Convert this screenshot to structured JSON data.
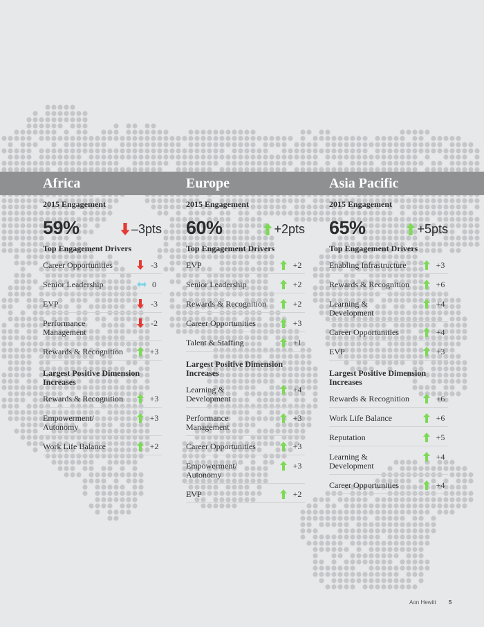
{
  "regions": [
    {
      "title": "Africa",
      "engagement_label": "2015 Engagement",
      "engagement": "59%",
      "change": "–3pts",
      "change_dir": "down",
      "drivers_title": "Top Engagement Drivers",
      "drivers": [
        {
          "label": "Career Opportunities",
          "dir": "down",
          "value": "-3"
        },
        {
          "label": "Senior Leadership",
          "dir": "flat",
          "value": "0"
        },
        {
          "label": "EVP",
          "dir": "down",
          "value": "-3"
        },
        {
          "label": "Performance Management",
          "dir": "down",
          "value": "-2"
        },
        {
          "label": "Rewards & Recognition",
          "dir": "up",
          "value": "+3"
        }
      ],
      "increases_title": "Largest Positive Dimension Increases",
      "increases": [
        {
          "label": "Rewards & Recognition",
          "dir": "up",
          "value": "+3"
        },
        {
          "label": "Empowerment/ Autonomy",
          "dir": "up",
          "value": "+3"
        },
        {
          "label": "Work Life Balance",
          "dir": "up",
          "value": "+2"
        }
      ]
    },
    {
      "title": "Europe",
      "engagement_label": "2015 Engagement",
      "engagement": "60%",
      "change": "+2pts",
      "change_dir": "up",
      "drivers_title": "Top Engagement Drivers",
      "drivers": [
        {
          "label": "EVP",
          "dir": "up",
          "value": "+2"
        },
        {
          "label": "Senior Leadership",
          "dir": "up",
          "value": "+2"
        },
        {
          "label": "Rewards & Recognition",
          "dir": "up",
          "value": "+2"
        },
        {
          "label": "Career Opportunities",
          "dir": "up",
          "value": "+3"
        },
        {
          "label": "Talent & Staffing",
          "dir": "up",
          "value": "+1"
        }
      ],
      "increases_title": "Largest Positive Dimension Increases",
      "increases": [
        {
          "label": "Learning & Development",
          "dir": "up",
          "value": "+4"
        },
        {
          "label": "Performance Management",
          "dir": "up",
          "value": "+3"
        },
        {
          "label": "Career Opportunities",
          "dir": "up",
          "value": "+3"
        },
        {
          "label": "Empowerment/ Autonomy",
          "dir": "up",
          "value": "+3"
        },
        {
          "label": "EVP",
          "dir": "up",
          "value": "+2"
        }
      ]
    },
    {
      "title": "Asia Pacific",
      "engagement_label": "2015 Engagement",
      "engagement": "65%",
      "change": "+5pts",
      "change_dir": "up",
      "drivers_title": "Top Engagement Drivers",
      "drivers": [
        {
          "label": "Enabling Infrastructure",
          "dir": "up",
          "value": "+3"
        },
        {
          "label": "Rewards & Recognition",
          "dir": "up",
          "value": "+6"
        },
        {
          "label": "Learning & Development",
          "dir": "up",
          "value": "+4"
        },
        {
          "label": "Career Opportunities",
          "dir": "up",
          "value": "+4"
        },
        {
          "label": "EVP",
          "dir": "up",
          "value": "+3"
        }
      ],
      "increases_title": "Largest Positive Dimension Increases",
      "increases": [
        {
          "label": "Rewards & Recognition",
          "dir": "up",
          "value": "+6"
        },
        {
          "label": "Work Life Balance",
          "dir": "up",
          "value": "+6"
        },
        {
          "label": "Reputation",
          "dir": "up",
          "value": "+5"
        },
        {
          "label": "Learning & Development",
          "dir": "up",
          "value": "+4"
        },
        {
          "label": "Career Opportunities",
          "dir": "up",
          "value": "+4"
        }
      ]
    }
  ],
  "footer": {
    "brand": "Aon Hewitt",
    "page": "5"
  },
  "colors": {
    "up": "#7ed957",
    "down": "#e53935",
    "flat": "#7fd3e6",
    "band": "#8f9092",
    "dots": "#c4c6c9"
  },
  "icons": {
    "up": "arrow-up-icon",
    "down": "arrow-down-icon",
    "flat": "double-arrow-icon"
  }
}
